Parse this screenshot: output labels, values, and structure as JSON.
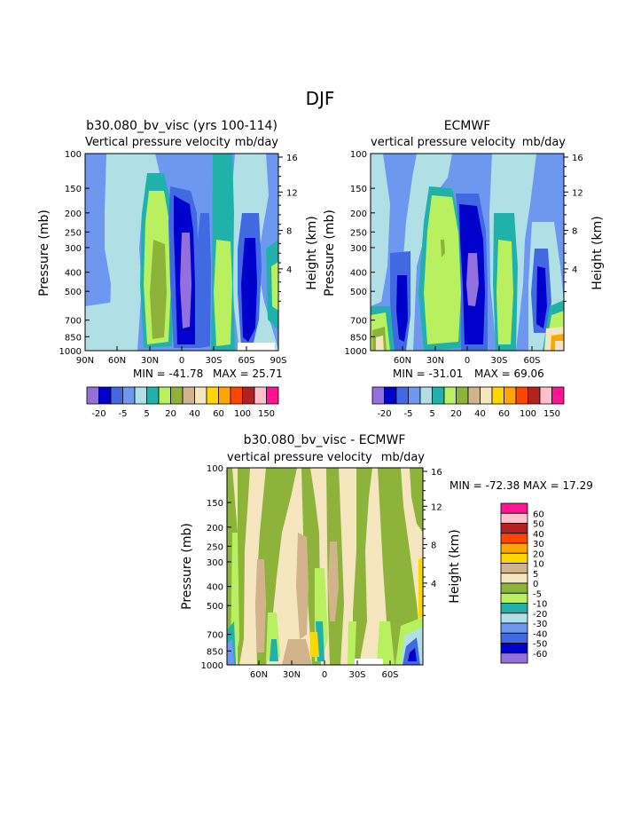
{
  "colors": {
    "m20": "#9370DB",
    "m15": "#0000CD",
    "m10": "#4169E1",
    "m5": "#6E98F0",
    "z": "#B0E0E6",
    "p5": "#20B2AA",
    "p10": "#B8F060",
    "p20": "#8DB33A",
    "p30": "#D2B48C",
    "p40": "#F5E6C0",
    "p50": "#FFD700",
    "p60": "#FFA500",
    "p80": "#FF4500",
    "p100": "#B22222",
    "p120": "#FFC0CB",
    "p150": "#FF1493"
  },
  "diff_colors": {
    "c60": "#FF1493",
    "c50": "#FFC0CB",
    "c40": "#B22222",
    "c30": "#FF4500",
    "c20": "#FFA500",
    "c10": "#FFD700",
    "c5": "#D2B48C",
    "c0": "#F5E6C0",
    "cm5": "#8DB33A",
    "cm10": "#B8F060",
    "cm20": "#20B2AA",
    "cm30": "#B0E0E6",
    "cm40": "#6E98F0",
    "cm50": "#4169E1",
    "cm60": "#0000CD",
    "cmlow": "#9370DB"
  },
  "chart_data": [
    {
      "type": "heatmap",
      "title": "b30.080_bv_visc (yrs 100-114)",
      "subtitle_left": "Vertical pressure velocity",
      "subtitle_right": "mb/day",
      "ylabel": "Pressure (mb)",
      "ylabel_right": "Height (km)",
      "yticks": [
        "100",
        "150",
        "200",
        "250",
        "300",
        "400",
        "500",
        "700",
        "850",
        "1000"
      ],
      "yticks_right": [
        "16",
        "12",
        "8",
        "4"
      ],
      "xticks": [
        "90N",
        "60N",
        "30N",
        "0",
        "30S",
        "60S",
        "90S"
      ],
      "min_label": "MIN = -41.78",
      "max_label": "MAX = 25.71",
      "colorbar_labels": [
        "-20",
        "-5",
        "5",
        "20",
        "40",
        "60",
        "100",
        "150"
      ]
    },
    {
      "type": "heatmap",
      "title": "ECMWF",
      "subtitle_left": "vertical pressure velocity",
      "subtitle_right": "mb/day",
      "ylabel": "Pressure (mb)",
      "ylabel_right": "Height (km)",
      "yticks": [
        "100",
        "150",
        "200",
        "250",
        "300",
        "400",
        "500",
        "700",
        "850",
        "1000"
      ],
      "yticks_right": [
        "16",
        "12",
        "8",
        "4"
      ],
      "xticks": [
        "60N",
        "30N",
        "0",
        "30S",
        "60S"
      ],
      "min_label": "MIN = -31.01",
      "max_label": "MAX = 69.06",
      "colorbar_labels": [
        "-20",
        "-5",
        "5",
        "20",
        "40",
        "60",
        "100",
        "150"
      ]
    },
    {
      "type": "heatmap",
      "title": "b30.080_bv_visc - ECMWF",
      "subtitle_left": "vertical pressure velocity",
      "subtitle_right": "mb/day",
      "ylabel": "Pressure (mb)",
      "ylabel_right": "Height (km)",
      "yticks": [
        "100",
        "150",
        "200",
        "250",
        "300",
        "400",
        "500",
        "700",
        "850",
        "1000"
      ],
      "yticks_right": [
        "16",
        "12",
        "8",
        "4"
      ],
      "xticks": [
        "60N",
        "30N",
        "0",
        "30S",
        "60S"
      ],
      "minmax_label": "MIN = -72.38   MAX =  17.29",
      "colorbar_labels": [
        "60",
        "50",
        "40",
        "30",
        "20",
        "10",
        "5",
        "0",
        "-5",
        "-10",
        "-20",
        "-30",
        "-40",
        "-50",
        "-60"
      ]
    }
  ],
  "page_title": "DJF"
}
